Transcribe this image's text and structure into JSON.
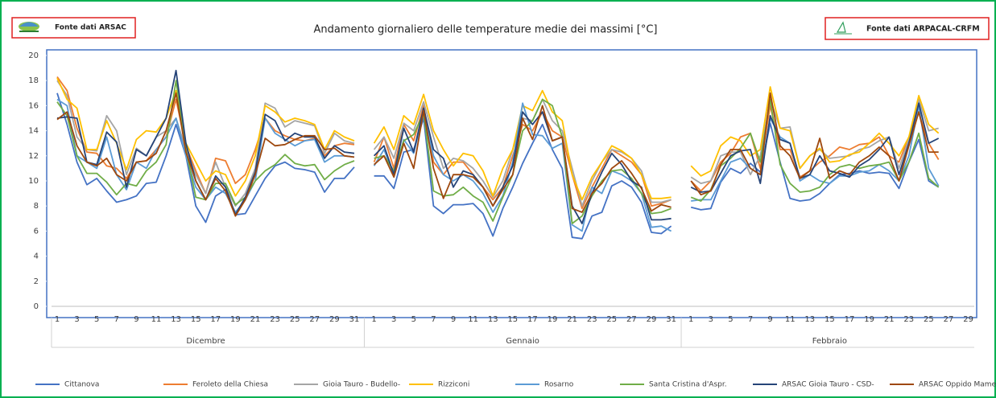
{
  "chart_data": {
    "type": "line",
    "title": "Andamento giornaliero delle temperature medie dei massimi [°C]",
    "sources": [
      "Fonte dati ARSAC",
      "Fonte dati ARPACAL-CRFM"
    ],
    "ylim": [
      0,
      20
    ],
    "yticks": [
      0,
      2,
      4,
      6,
      8,
      10,
      12,
      14,
      16,
      18,
      20
    ],
    "grid": false,
    "months": [
      {
        "name": "Dicembre",
        "days": [
          1,
          null,
          3,
          null,
          5,
          null,
          7,
          null,
          9,
          null,
          11,
          null,
          13,
          null,
          15,
          null,
          17,
          null,
          19,
          null,
          21,
          null,
          23,
          null,
          25,
          null,
          27,
          null,
          29,
          null,
          31
        ]
      },
      {
        "name": "Gennaio",
        "days": [
          1,
          null,
          3,
          null,
          5,
          null,
          7,
          null,
          9,
          null,
          11,
          null,
          13,
          null,
          15,
          null,
          17,
          null,
          19,
          null,
          21,
          null,
          23,
          null,
          25,
          null,
          27,
          null,
          29,
          null,
          31
        ]
      },
      {
        "name": "Febbraio",
        "days": [
          1,
          null,
          3,
          null,
          5,
          null,
          7,
          null,
          9,
          null,
          11,
          null,
          13,
          null,
          15,
          null,
          17,
          null,
          19,
          null,
          21,
          null,
          23,
          null,
          25,
          null,
          27,
          null,
          29
        ]
      }
    ],
    "series": [
      {
        "name": "Cittanova",
        "color": "#4472c4",
        "values": [
          [
            17.0,
            14.5,
            11.5,
            9.7,
            10.2,
            9.2,
            8.3,
            8.5,
            8.8,
            9.8,
            9.9,
            12.0,
            14.5,
            12.0,
            8.0,
            6.7,
            8.8,
            9.3,
            7.3,
            7.4,
            8.8,
            10.2,
            11.2,
            11.5,
            11.0,
            10.9,
            10.7,
            9.1,
            10.2,
            10.2,
            11.1
          ],
          [
            10.4,
            10.4,
            9.4,
            12.3,
            12.5,
            15.0,
            8.0,
            7.4,
            8.1,
            8.1,
            8.2,
            7.4,
            5.6,
            7.8,
            9.5,
            11.4,
            13.0,
            14.5,
            12.5,
            11.0,
            5.5,
            5.4,
            7.2,
            7.5,
            9.6,
            10.0,
            9.5,
            8.3,
            5.9,
            5.8,
            6.4
          ],
          [
            7.9,
            7.7,
            7.8,
            9.9,
            11.0,
            10.6,
            11.4,
            10.7,
            14.6,
            11.5,
            8.6,
            8.4,
            8.5,
            9.0,
            9.8,
            10.5,
            10.6,
            10.8,
            10.6,
            10.7,
            10.6,
            9.4,
            11.5,
            13.3,
            10.0,
            9.5,
            null,
            null,
            null
          ]
        ]
      },
      {
        "name": "Feroleto della Chiesa",
        "color": "#ed7d31",
        "values": [
          [
            18.3,
            17.2,
            14.2,
            12.3,
            12.2,
            11.2,
            11.0,
            10.2,
            11.5,
            11.6,
            12.5,
            13.5,
            16.5,
            12.8,
            10.8,
            9.0,
            11.8,
            11.6,
            9.8,
            10.5,
            12.5,
            15.0,
            14.0,
            13.6,
            13.3,
            13.2,
            13.4,
            12.0,
            12.8,
            13.0,
            12.9
          ],
          [
            11.5,
            13.5,
            11.0,
            14.5,
            13.2,
            16.0,
            11.5,
            10.5,
            11.5,
            11.5,
            10.5,
            9.5,
            8.5,
            9.5,
            12.0,
            14.5,
            14.0,
            15.5,
            14.0,
            13.5,
            10.5,
            7.8,
            9.5,
            11.0,
            12.5,
            12.0,
            11.5,
            10.5,
            8.0,
            8.2,
            8.5
          ],
          [
            10.0,
            9.2,
            10.0,
            11.5,
            12.2,
            13.5,
            13.8,
            11.0,
            16.0,
            12.5,
            12.5,
            10.3,
            10.8,
            11.5,
            12.0,
            12.7,
            12.5,
            12.9,
            13.0,
            13.5,
            12.0,
            11.5,
            13.5,
            15.5,
            13.0,
            11.7,
            null,
            null,
            null
          ]
        ]
      },
      {
        "name": "Gioia Tauro - Budello-",
        "color": "#a5a5a5",
        "values": [
          [
            18.0,
            16.8,
            13.5,
            12.5,
            12.4,
            15.2,
            14.0,
            10.5,
            12.6,
            12.0,
            13.5,
            14.0,
            15.0,
            12.5,
            10.5,
            9.0,
            11.5,
            9.5,
            8.0,
            9.0,
            11.0,
            16.2,
            15.8,
            14.3,
            14.8,
            14.6,
            14.4,
            12.2,
            13.8,
            13.2,
            13.0
          ],
          [
            12.5,
            13.5,
            11.8,
            14.6,
            14.0,
            16.3,
            13.5,
            11.0,
            11.8,
            11.6,
            11.0,
            10.0,
            8.7,
            10.0,
            12.5,
            15.0,
            14.8,
            16.5,
            14.8,
            14.0,
            11.0,
            8.0,
            10.0,
            11.5,
            12.5,
            12.3,
            11.8,
            10.8,
            8.3,
            8.3,
            8.5
          ],
          [
            10.3,
            9.8,
            10.0,
            12.0,
            12.3,
            12.3,
            10.5,
            12.0,
            16.5,
            14.2,
            14.3,
            11.0,
            12.0,
            12.5,
            11.8,
            11.9,
            12.0,
            12.5,
            12.7,
            13.2,
            13.5,
            11.0,
            13.3,
            16.5,
            14.0,
            14.2,
            null,
            null,
            null
          ]
        ]
      },
      {
        "name": "Rizziconi",
        "color": "#ffc000",
        "values": [
          [
            18.2,
            16.5,
            15.8,
            12.5,
            12.5,
            14.8,
            13.0,
            10.9,
            13.3,
            14.0,
            13.9,
            15.0,
            17.2,
            13.0,
            11.5,
            10.0,
            10.8,
            10.5,
            8.8,
            10.0,
            12.0,
            16.0,
            15.5,
            14.7,
            15.0,
            14.8,
            14.5,
            12.5,
            14.0,
            13.5,
            13.2
          ],
          [
            13.0,
            14.3,
            12.5,
            15.2,
            14.5,
            16.9,
            14.0,
            12.5,
            11.2,
            12.2,
            12.0,
            10.8,
            8.8,
            11.0,
            12.5,
            16.0,
            15.6,
            17.2,
            15.5,
            14.8,
            10.5,
            8.5,
            10.3,
            11.5,
            12.8,
            12.4,
            11.8,
            10.5,
            8.6,
            8.6,
            8.7
          ],
          [
            11.2,
            10.4,
            10.8,
            12.8,
            13.5,
            13.2,
            12.0,
            12.5,
            17.5,
            14.2,
            14.0,
            11.0,
            12.0,
            12.6,
            11.5,
            11.6,
            12.1,
            12.3,
            13.0,
            13.8,
            13.0,
            12.0,
            13.5,
            16.8,
            14.5,
            13.8,
            null,
            null,
            null
          ]
        ]
      },
      {
        "name": "Rosarno",
        "color": "#5b9bd5",
        "values": [
          [
            16.5,
            16.0,
            12.0,
            11.5,
            11.0,
            13.5,
            10.5,
            9.3,
            11.5,
            11.0,
            12.5,
            13.5,
            15.0,
            12.0,
            9.5,
            8.5,
            9.5,
            9.0,
            7.5,
            8.5,
            10.0,
            15.0,
            13.8,
            13.3,
            12.8,
            13.2,
            13.3,
            11.5,
            12.0,
            12.0,
            11.9
          ],
          [
            11.2,
            12.5,
            10.5,
            13.3,
            12.2,
            15.4,
            12.0,
            10.5,
            10.0,
            10.5,
            10.0,
            9.0,
            7.5,
            8.8,
            11.5,
            16.2,
            13.7,
            13.6,
            12.6,
            13.0,
            6.5,
            6.0,
            9.5,
            9.0,
            10.8,
            10.5,
            10.0,
            9.0,
            6.3,
            6.4,
            6.0
          ],
          [
            8.4,
            8.5,
            8.5,
            10.0,
            11.5,
            11.8,
            11.0,
            10.5,
            15.0,
            13.5,
            13.0,
            10.0,
            10.5,
            10.0,
            9.8,
            10.4,
            10.4,
            10.7,
            10.8,
            11.3,
            10.8,
            10.0,
            12.0,
            16.0,
            11.0,
            9.6,
            null,
            null,
            null
          ]
        ]
      },
      {
        "name": "Santa Cristina d'Aspr.",
        "color": "#70ad47",
        "values": [
          [
            16.3,
            15.2,
            12.0,
            10.6,
            10.6,
            9.9,
            8.9,
            9.8,
            9.6,
            10.8,
            11.5,
            12.9,
            18.0,
            12.5,
            8.7,
            8.5,
            9.8,
            9.8,
            8.1,
            8.7,
            10.0,
            10.8,
            11.3,
            12.1,
            11.4,
            11.2,
            11.3,
            10.1,
            10.8,
            11.3,
            11.6
          ],
          [
            11.8,
            12.0,
            10.8,
            13.2,
            13.7,
            15.4,
            9.2,
            8.8,
            8.9,
            9.5,
            8.8,
            8.3,
            6.8,
            8.7,
            10.5,
            14.0,
            14.8,
            16.5,
            16.0,
            13.5,
            6.6,
            7.2,
            8.8,
            10.0,
            10.8,
            10.9,
            10.2,
            9.0,
            7.4,
            7.5,
            7.8
          ],
          [
            8.7,
            8.4,
            9.3,
            11.2,
            11.8,
            12.6,
            13.8,
            11.5,
            16.5,
            11.3,
            9.8,
            9.1,
            9.2,
            9.5,
            10.5,
            11.1,
            11.3,
            11.0,
            11.2,
            11.3,
            11.5,
            10.0,
            11.5,
            13.8,
            10.2,
            9.5,
            null,
            null,
            null
          ]
        ]
      },
      {
        "name": "ARSAC Gioia Tauro - CSD-",
        "color": "#264478",
        "values": [
          [
            15.0,
            15.1,
            15.0,
            11.5,
            11.3,
            13.9,
            13.1,
            9.5,
            12.5,
            12.0,
            13.5,
            15.0,
            18.8,
            13.0,
            10.0,
            8.5,
            10.4,
            9.5,
            7.3,
            8.7,
            10.7,
            15.3,
            14.8,
            13.2,
            13.8,
            13.5,
            13.5,
            11.8,
            12.8,
            12.3,
            12.2
          ],
          [
            12.0,
            12.8,
            10.5,
            14.2,
            12.3,
            15.8,
            12.5,
            11.8,
            9.5,
            10.8,
            10.5,
            9.5,
            8.0,
            9.5,
            11.2,
            15.5,
            14.5,
            15.5,
            13.2,
            13.5,
            8.0,
            6.6,
            9.0,
            10.7,
            12.2,
            11.3,
            10.0,
            9.5,
            6.9,
            6.9,
            7.0
          ],
          [
            9.5,
            9.1,
            9.2,
            10.6,
            12.0,
            12.4,
            12.5,
            9.8,
            15.2,
            13.3,
            13.0,
            10.2,
            10.5,
            12.0,
            10.8,
            10.6,
            10.3,
            11.2,
            11.7,
            12.5,
            13.5,
            10.5,
            13.0,
            16.2,
            13.0,
            13.4,
            null,
            null,
            null
          ]
        ]
      },
      {
        "name": "ARSAC Oppido Mamertina",
        "color": "#9e480e",
        "values": [
          [
            14.9,
            15.5,
            12.8,
            11.5,
            11.2,
            11.8,
            10.5,
            10.0,
            11.5,
            11.6,
            12.2,
            14.0,
            17.0,
            12.3,
            10.0,
            8.5,
            10.2,
            9.2,
            7.2,
            8.5,
            10.5,
            13.4,
            12.8,
            12.9,
            13.3,
            13.6,
            13.6,
            12.5,
            12.6,
            12.0,
            11.9
          ],
          [
            11.3,
            12.0,
            10.3,
            13.0,
            11.0,
            15.6,
            11.0,
            8.6,
            10.5,
            10.5,
            10.3,
            9.5,
            8.0,
            9.3,
            10.5,
            15.0,
            13.3,
            16.0,
            13.2,
            13.5,
            7.8,
            7.5,
            9.0,
            9.8,
            11.0,
            11.6,
            10.6,
            9.4,
            7.6,
            8.1,
            7.9
          ],
          [
            10.0,
            8.9,
            9.2,
            11.3,
            12.5,
            12.5,
            11.0,
            10.5,
            17.0,
            12.8,
            12.0,
            10.2,
            10.8,
            13.4,
            10.2,
            10.8,
            10.5,
            11.5,
            12.0,
            12.7,
            12.0,
            10.0,
            12.8,
            15.5,
            12.3,
            12.3,
            null,
            null,
            null
          ]
        ]
      }
    ]
  }
}
